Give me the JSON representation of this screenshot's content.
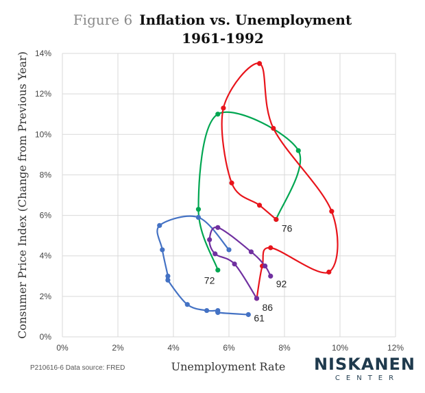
{
  "header": {
    "figure_label": "Figure 6",
    "title": "Inflation vs. Unemployment",
    "subtitle": "1961-1992"
  },
  "footer": {
    "source": "P210616-6 Data source: FRED",
    "brand_name": "NISKANEN",
    "brand_sub": "CENTER"
  },
  "chart_data": {
    "type": "scatter",
    "xlabel": "Unemployment Rate",
    "ylabel": "Consumer Price Index (Change from Previous Year)",
    "xlim": [
      0,
      12
    ],
    "ylim": [
      0,
      14
    ],
    "x_ticks": [
      "0%",
      "2%",
      "4%",
      "6%",
      "8%",
      "10%",
      "12%"
    ],
    "y_ticks": [
      "0%",
      "2%",
      "4%",
      "6%",
      "8%",
      "10%",
      "12%",
      "14%"
    ],
    "grid": true,
    "series": [
      {
        "color": "#4472c4",
        "points": [
          {
            "x": 6.7,
            "y": 1.1
          },
          {
            "x": 5.6,
            "y": 1.2
          },
          {
            "x": 5.6,
            "y": 1.3
          },
          {
            "x": 5.2,
            "y": 1.3
          },
          {
            "x": 4.5,
            "y": 1.6
          },
          {
            "x": 3.8,
            "y": 2.8
          },
          {
            "x": 3.8,
            "y": 3.0
          },
          {
            "x": 3.6,
            "y": 4.3
          },
          {
            "x": 3.5,
            "y": 5.5
          },
          {
            "x": 4.9,
            "y": 5.9
          },
          {
            "x": 6.0,
            "y": 4.3
          }
        ]
      },
      {
        "color": "#00a651",
        "points": [
          {
            "x": 5.6,
            "y": 3.3
          },
          {
            "x": 4.9,
            "y": 6.3
          },
          {
            "x": 5.6,
            "y": 11.0
          },
          {
            "x": 8.5,
            "y": 9.2
          },
          {
            "x": 7.7,
            "y": 5.8
          }
        ]
      },
      {
        "color": "#e8141b",
        "points": [
          {
            "x": 7.7,
            "y": 5.8
          },
          {
            "x": 7.1,
            "y": 6.5
          },
          {
            "x": 6.1,
            "y": 7.6
          },
          {
            "x": 5.8,
            "y": 11.3
          },
          {
            "x": 7.1,
            "y": 13.5
          },
          {
            "x": 7.6,
            "y": 10.3
          },
          {
            "x": 9.7,
            "y": 6.2
          },
          {
            "x": 9.6,
            "y": 3.2
          },
          {
            "x": 7.5,
            "y": 4.4
          },
          {
            "x": 7.2,
            "y": 3.5
          },
          {
            "x": 7.0,
            "y": 1.9
          }
        ]
      },
      {
        "color": "#7030a0",
        "points": [
          {
            "x": 7.0,
            "y": 1.9
          },
          {
            "x": 6.2,
            "y": 3.6
          },
          {
            "x": 5.5,
            "y": 4.1
          },
          {
            "x": 5.3,
            "y": 4.8
          },
          {
            "x": 5.6,
            "y": 5.4
          },
          {
            "x": 6.8,
            "y": 4.2
          },
          {
            "x": 7.3,
            "y": 3.5
          },
          {
            "x": 7.5,
            "y": 3.0
          }
        ]
      }
    ],
    "annotations": [
      {
        "text": "61",
        "x": 6.7,
        "y": 1.1
      },
      {
        "text": "72",
        "x": 5.6,
        "y": 3.3
      },
      {
        "text": "76",
        "x": 7.7,
        "y": 5.8
      },
      {
        "text": "86",
        "x": 7.0,
        "y": 1.9
      },
      {
        "text": "92",
        "x": 7.5,
        "y": 3.0
      }
    ]
  }
}
